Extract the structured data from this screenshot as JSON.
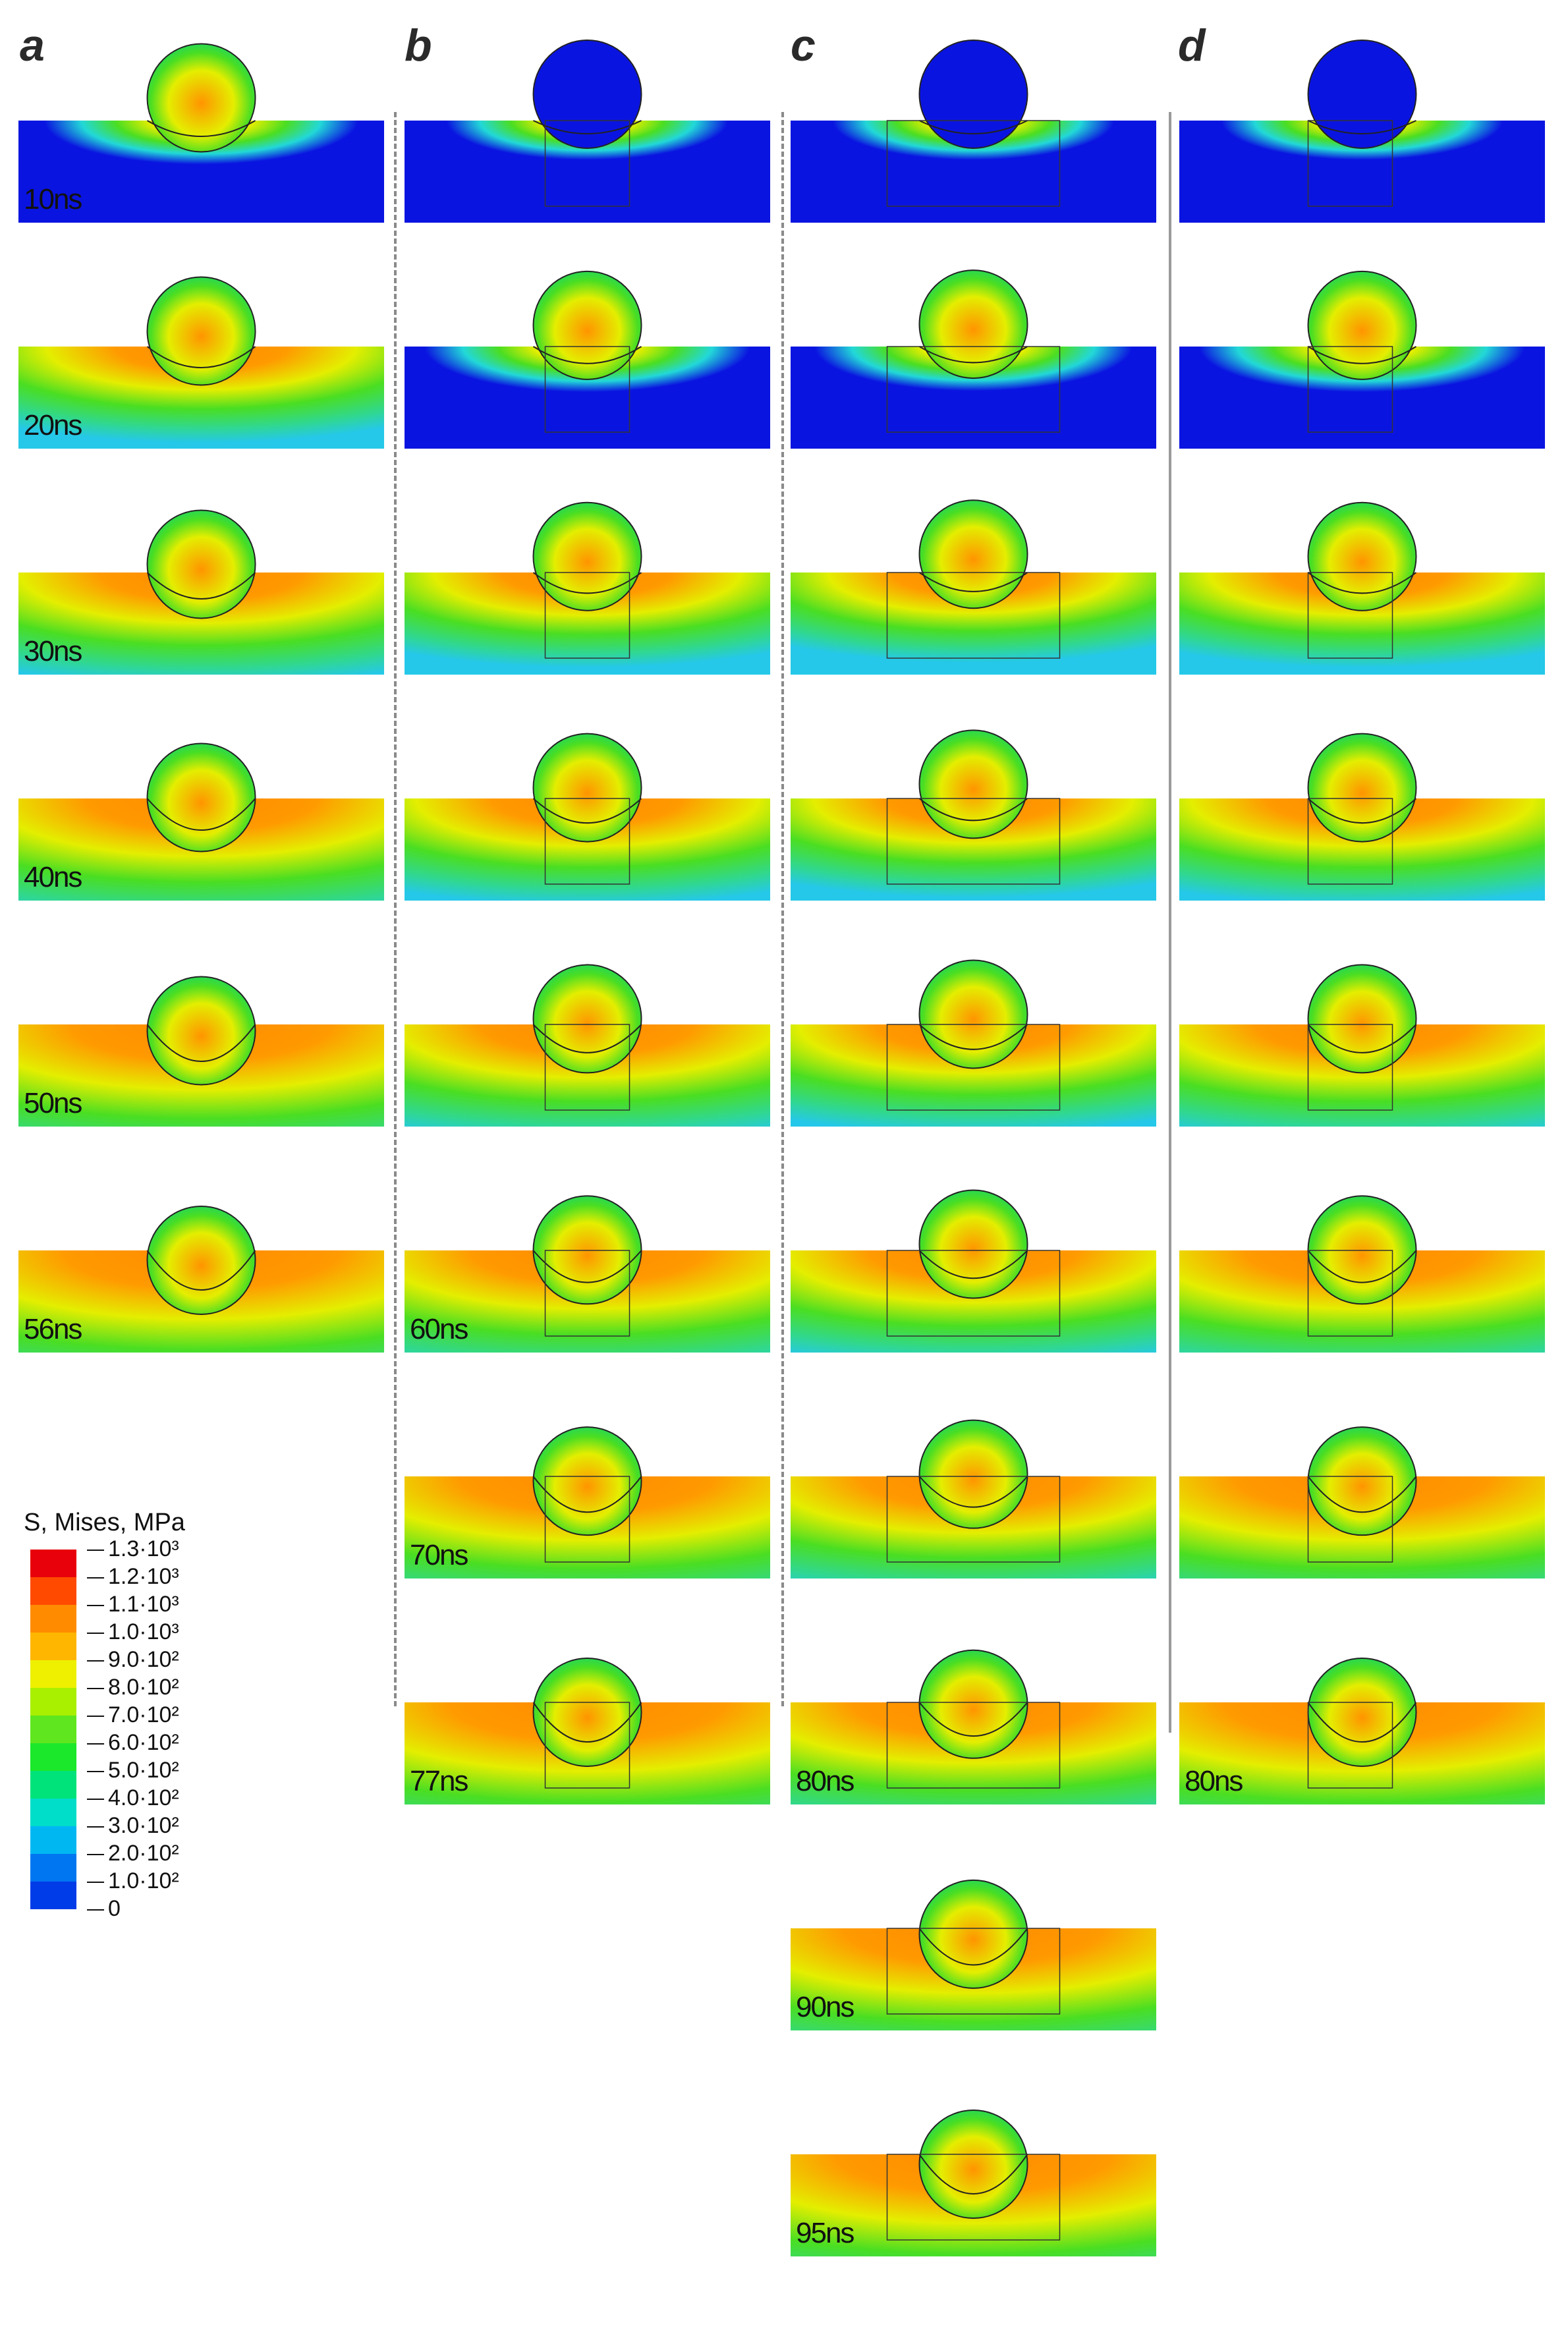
{
  "columns": [
    {
      "label": "a",
      "times": [
        "10ns",
        "20ns",
        "30ns",
        "40ns",
        "50ns",
        "56ns"
      ]
    },
    {
      "label": "b",
      "times": [
        "",
        "",
        "",
        "",
        "",
        "60ns",
        "70ns",
        "77ns"
      ]
    },
    {
      "label": "c",
      "times": [
        "",
        "",
        "",
        "",
        "",
        "",
        "",
        "80ns",
        "90ns",
        "95ns"
      ]
    },
    {
      "label": "d",
      "times": [
        "",
        "",
        "",
        "",
        "",
        "",
        "",
        "80ns"
      ]
    }
  ],
  "legend": {
    "title": "S, Mises, MPa",
    "entries": [
      "1.3·10³",
      "1.2·10³",
      "1.1·10³",
      "1.0·10³",
      "9.0·10²",
      "8.0·10²",
      "7.0·10²",
      "6.0·10²",
      "5.0·10²",
      "4.0·10²",
      "3.0·10²",
      "2.0·10²",
      "1.0·10²",
      "0"
    ],
    "colors": [
      "#e8000b",
      "#ff4a00",
      "#ff8c00",
      "#ffb600",
      "#eef000",
      "#a9ef00",
      "#5fe61f",
      "#1be82b",
      "#00e37a",
      "#00ddc8",
      "#00b7f2",
      "#0076f0",
      "#003ce8",
      "#0000e6"
    ]
  },
  "colors": {
    "deep_blue": "#0a14e0",
    "green": "#4ade22",
    "yellow": "#e4ee00",
    "orange": "#ff9a00",
    "divider": "#8a8a8a"
  }
}
